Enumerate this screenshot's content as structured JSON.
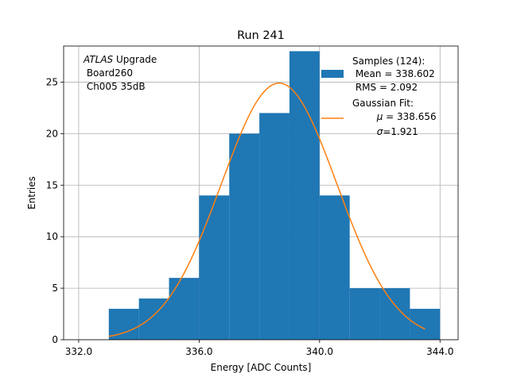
{
  "chart_data": {
    "type": "bar",
    "title": "Run 241",
    "xlabel": "Energy [ADC Counts]",
    "ylabel": "Entries",
    "xlim": [
      331.5,
      344.6
    ],
    "ylim": [
      0,
      28.5
    ],
    "x_ticks": [
      332.0,
      336.0,
      340.0,
      344.0
    ],
    "x_tick_labels": [
      "332.0",
      "336.0",
      "340.0",
      "344.0"
    ],
    "y_ticks": [
      0,
      5,
      10,
      15,
      20,
      25
    ],
    "y_tick_labels": [
      "0",
      "5",
      "10",
      "15",
      "20",
      "25"
    ],
    "grid": true,
    "bar_color": "#1f77b4",
    "fit_color": "#ff7f0e",
    "histogram": {
      "name": "Samples (124):",
      "bin_edges": [
        333,
        334,
        335,
        336,
        337,
        338,
        339,
        340,
        341,
        342,
        343,
        344
      ],
      "counts": [
        3,
        4,
        6,
        14,
        20,
        22,
        28,
        14,
        5,
        5,
        3
      ]
    },
    "gaussian_fit": {
      "name": "Gaussian Fit:",
      "mu": 338.656,
      "sigma": 1.921,
      "amplitude": 24.9,
      "x_range": [
        333,
        343.5
      ]
    },
    "annotation": {
      "line1_italic": "ATLAS",
      "line1_rest": " Upgrade",
      "line2": " Board260",
      "line3": " Ch005 35dB"
    },
    "legend": {
      "position": "top-right",
      "samples_title": "Samples (124):",
      "samples_mean": " Mean = 338.602",
      "samples_rms": " RMS = 2.092",
      "fit_title": "Gaussian Fit:",
      "fit_mu_symbol": "μ",
      "fit_mu_value": " = 338.656",
      "fit_sigma_symbol": "σ",
      "fit_sigma_value": "=1.921"
    }
  }
}
